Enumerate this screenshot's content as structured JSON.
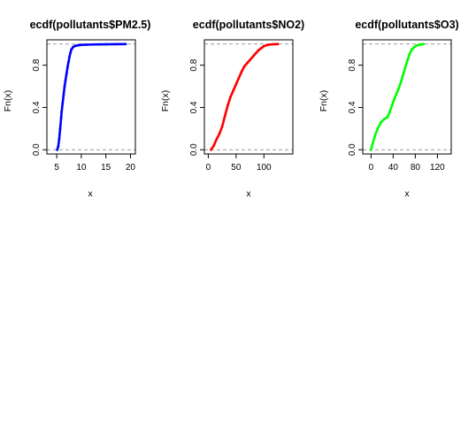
{
  "chart_data": [
    {
      "type": "line",
      "title": "ecdf(pollutants$PM2.5)",
      "xlabel": "x",
      "ylabel": "Fn(x)",
      "xlim": [
        3,
        21
      ],
      "ylim": [
        -0.04,
        1.04
      ],
      "xticks": [
        5,
        10,
        15,
        20
      ],
      "yticks": [
        0.0,
        0.4,
        0.8
      ],
      "xtick_labels": [
        "5",
        "10",
        "15",
        "20"
      ],
      "ytick_labels": [
        "0.0",
        "0.4",
        "0.8"
      ],
      "reference_lines": [
        0,
        1
      ],
      "color": "#0000ff",
      "series": [
        {
          "x": [
            5.1,
            5.3,
            5.5,
            5.7,
            5.9,
            6.0,
            6.2,
            6.4,
            6.6,
            6.8,
            7.0,
            7.2,
            7.4,
            7.6,
            7.8,
            8.0,
            8.3,
            8.6,
            9.0,
            9.5,
            10.0,
            11.0,
            12.5,
            13.5,
            15.0,
            17.0,
            19.0
          ],
          "y": [
            0.0,
            0.03,
            0.1,
            0.2,
            0.3,
            0.36,
            0.44,
            0.52,
            0.6,
            0.66,
            0.72,
            0.78,
            0.83,
            0.88,
            0.92,
            0.95,
            0.97,
            0.98,
            0.985,
            0.99,
            0.992,
            0.994,
            0.996,
            0.997,
            0.998,
            0.999,
            1.0
          ]
        }
      ]
    },
    {
      "type": "line",
      "title": "ecdf(pollutants$NO2)",
      "xlabel": "x",
      "ylabel": "Fn(x)",
      "xlim": [
        -7,
        152
      ],
      "ylim": [
        -0.04,
        1.04
      ],
      "xticks": [
        0,
        50,
        100
      ],
      "yticks": [
        0.0,
        0.4,
        0.8
      ],
      "xtick_labels": [
        "0",
        "50",
        "100"
      ],
      "ytick_labels": [
        "0.0",
        "0.4",
        "0.8"
      ],
      "reference_lines": [
        0,
        1
      ],
      "color": "#ff0000",
      "series": [
        {
          "x": [
            5,
            10,
            15,
            20,
            25,
            30,
            35,
            40,
            45,
            50,
            55,
            60,
            65,
            70,
            75,
            80,
            85,
            90,
            95,
            100,
            105,
            110,
            115,
            120,
            125
          ],
          "y": [
            0.0,
            0.04,
            0.1,
            0.15,
            0.22,
            0.32,
            0.42,
            0.5,
            0.56,
            0.62,
            0.68,
            0.74,
            0.79,
            0.82,
            0.85,
            0.88,
            0.91,
            0.94,
            0.96,
            0.98,
            0.99,
            0.995,
            0.997,
            0.999,
            1.0
          ]
        }
      ]
    },
    {
      "type": "line",
      "title": "ecdf(pollutants$O3)",
      "xlabel": "x",
      "ylabel": "Fn(x)",
      "xlim": [
        -15,
        145
      ],
      "ylim": [
        -0.04,
        1.04
      ],
      "xticks": [
        0,
        40,
        80,
        120
      ],
      "yticks": [
        0.0,
        0.4,
        0.8
      ],
      "xtick_labels": [
        "0",
        "40",
        "80",
        "120"
      ],
      "ytick_labels": [
        "0.0",
        "0.4",
        "0.8"
      ],
      "reference_lines": [
        0,
        1
      ],
      "color": "#00ff00",
      "series": [
        {
          "x": [
            0,
            3,
            7,
            12,
            18,
            24,
            30,
            34,
            38,
            42,
            46,
            50,
            54,
            58,
            62,
            66,
            70,
            74,
            78,
            82,
            88,
            95
          ],
          "y": [
            0.0,
            0.06,
            0.13,
            0.2,
            0.26,
            0.29,
            0.31,
            0.36,
            0.42,
            0.48,
            0.53,
            0.58,
            0.64,
            0.71,
            0.78,
            0.85,
            0.91,
            0.95,
            0.97,
            0.985,
            0.995,
            1.0
          ]
        }
      ]
    }
  ]
}
